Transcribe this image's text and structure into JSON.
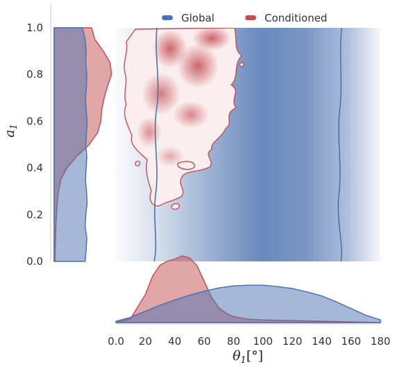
{
  "chart_data": {
    "type": "joint-density",
    "xlabel": "θ1[°]",
    "ylabel": "a1",
    "xlim": [
      0,
      180
    ],
    "ylim": [
      0,
      1
    ],
    "x_ticks": [
      "0.0",
      "20",
      "40",
      "60",
      "80",
      "100",
      "120",
      "140",
      "160",
      "180"
    ],
    "y_ticks": [
      "0.0",
      "0.2",
      "0.4",
      "0.6",
      "0.8",
      "1.0"
    ],
    "legend_position": "top",
    "series": [
      {
        "name": "Global",
        "color": "#4c72b0",
        "x_range": [
          25,
          155
        ],
        "x_marginal": {
          "x": [
            0,
            10,
            20,
            30,
            40,
            50,
            60,
            70,
            80,
            90,
            100,
            110,
            120,
            130,
            140,
            150,
            160,
            170,
            180
          ],
          "density": [
            0.02,
            0.08,
            0.17,
            0.26,
            0.34,
            0.41,
            0.47,
            0.52,
            0.55,
            0.56,
            0.56,
            0.54,
            0.51,
            0.46,
            0.4,
            0.31,
            0.21,
            0.11,
            0.04
          ]
        },
        "y_marginal": {
          "y": [
            0,
            0.05,
            0.1,
            0.15,
            0.2,
            0.25,
            0.3,
            0.35,
            0.4,
            0.45,
            0.5,
            0.55,
            0.6,
            0.65,
            0.7,
            0.75,
            0.8,
            0.85,
            0.9,
            0.95,
            1.0
          ],
          "density": [
            0.93,
            0.96,
            0.98,
            0.93,
            0.95,
            0.99,
            0.97,
            0.94,
            0.96,
            0.98,
            0.95,
            0.97,
            0.99,
            0.96,
            0.94,
            0.97,
            0.98,
            0.95,
            0.96,
            0.93,
            0.85
          ]
        }
      },
      {
        "name": "Conditioned",
        "color": "#c44e52",
        "x_range": [
          10,
          85
        ],
        "x_marginal": {
          "x": [
            0,
            10,
            20,
            25,
            30,
            35,
            40,
            45,
            50,
            55,
            60,
            65,
            70,
            75,
            80,
            90,
            100,
            120,
            140,
            160,
            180
          ],
          "density": [
            0.0,
            0.06,
            0.42,
            0.7,
            0.86,
            0.92,
            0.95,
            1.0,
            0.97,
            0.86,
            0.62,
            0.38,
            0.22,
            0.14,
            0.09,
            0.05,
            0.04,
            0.03,
            0.02,
            0.01,
            0.0
          ]
        },
        "y_marginal": {
          "y": [
            0,
            0.05,
            0.1,
            0.15,
            0.2,
            0.25,
            0.3,
            0.35,
            0.4,
            0.45,
            0.5,
            0.55,
            0.6,
            0.65,
            0.7,
            0.75,
            0.8,
            0.85,
            0.9,
            0.95,
            1.0
          ],
          "density": [
            0.02,
            0.03,
            0.04,
            0.05,
            0.07,
            0.09,
            0.13,
            0.2,
            0.38,
            0.68,
            1.05,
            1.3,
            1.4,
            1.43,
            1.5,
            1.6,
            1.72,
            1.68,
            1.48,
            1.22,
            1.12
          ]
        }
      }
    ]
  }
}
